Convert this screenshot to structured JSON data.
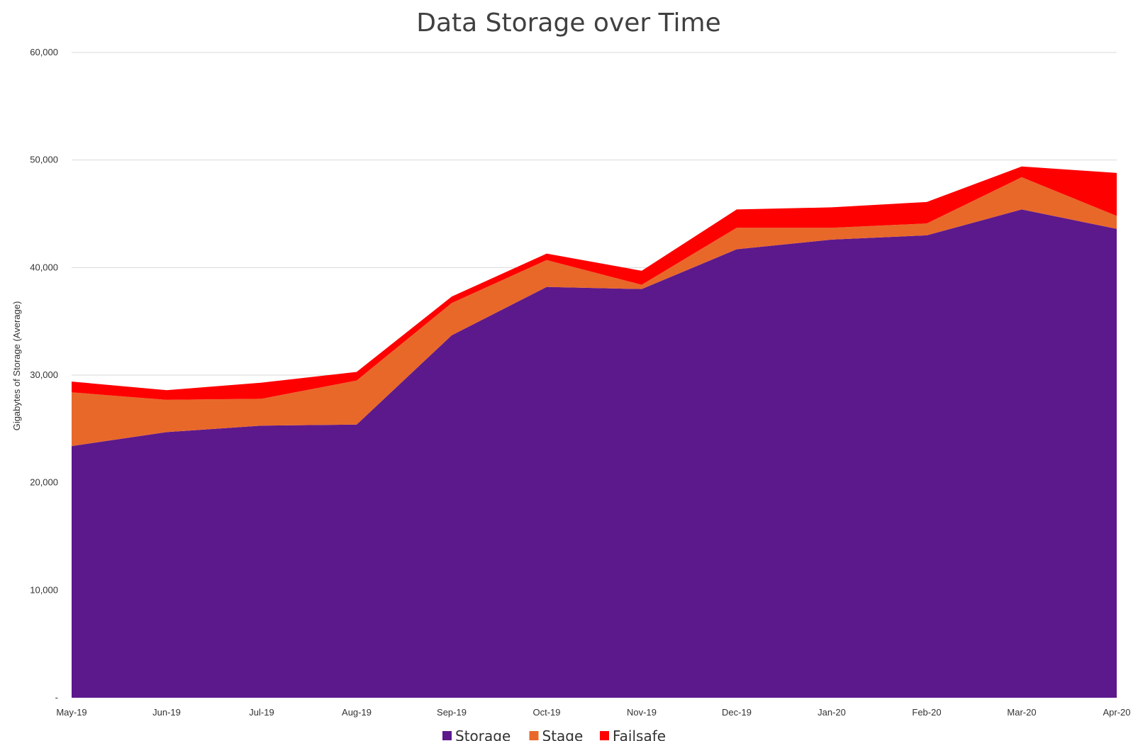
{
  "chart_data": {
    "type": "area",
    "stacked": true,
    "title": "Data Storage over Time",
    "xlabel": "",
    "ylabel": "Gigabytes of Storage (Average)",
    "ylim": [
      0,
      60000
    ],
    "yticks": [
      0,
      10000,
      20000,
      30000,
      40000,
      50000,
      60000
    ],
    "ytick_labels": [
      "-",
      "10,000",
      "20,000",
      "30,000",
      "40,000",
      "50,000",
      "60,000"
    ],
    "grid": true,
    "legend_position": "bottom",
    "categories": [
      "May-19",
      "Jun-19",
      "Jul-19",
      "Aug-19",
      "Sep-19",
      "Oct-19",
      "Nov-19",
      "Dec-19",
      "Jan-20",
      "Feb-20",
      "Mar-20",
      "Apr-20"
    ],
    "series": [
      {
        "name": "Storage",
        "color": "#5c198c",
        "values": [
          23400,
          24700,
          25300,
          25400,
          33700,
          38200,
          38000,
          41700,
          42600,
          43000,
          45400,
          43600
        ]
      },
      {
        "name": "Stage",
        "color": "#e8682a",
        "values": [
          5000,
          3000,
          2500,
          4100,
          3000,
          2500,
          400,
          2000,
          1100,
          1100,
          3000,
          1200
        ]
      },
      {
        "name": "Failsafe",
        "color": "#fe0000",
        "values": [
          1000,
          900,
          1500,
          800,
          600,
          600,
          1300,
          1700,
          1900,
          2000,
          1000,
          4000
        ]
      }
    ]
  }
}
